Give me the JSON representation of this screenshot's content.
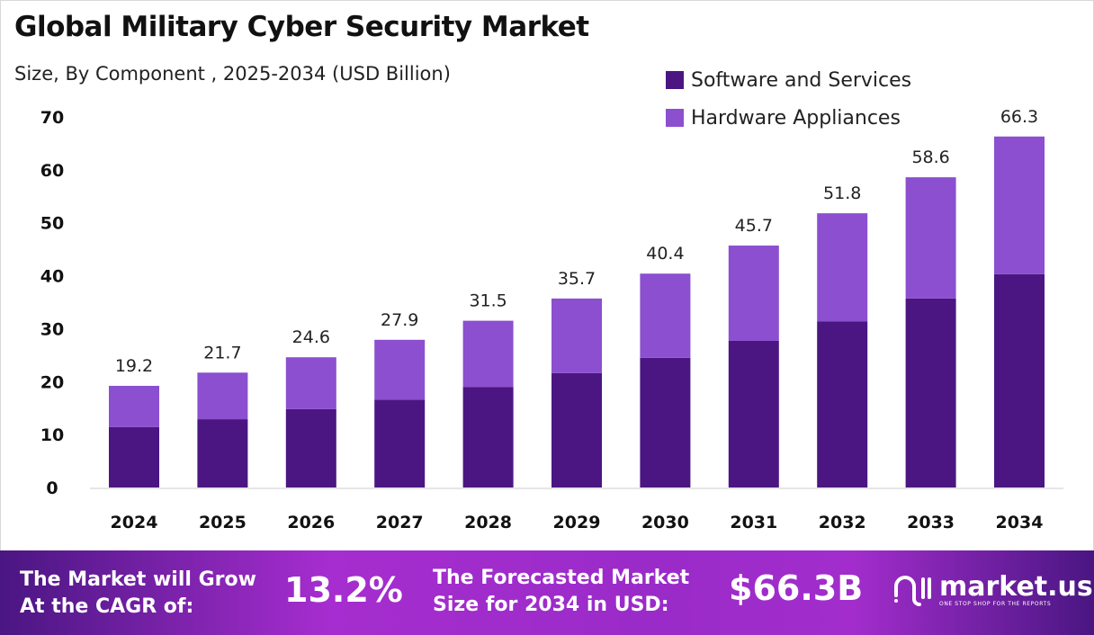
{
  "chart_data": {
    "type": "bar",
    "stacked": true,
    "title": "Global Military Cyber Security Market",
    "subtitle": "Size, By Component , 2025-2034 (USD Billion)",
    "categories": [
      "2024",
      "2025",
      "2026",
      "2027",
      "2028",
      "2029",
      "2030",
      "2031",
      "2032",
      "2033",
      "2034"
    ],
    "series": [
      {
        "name": "Software and Services",
        "color": "#4b1682",
        "values": [
          11.4,
          12.9,
          14.8,
          16.6,
          19.0,
          21.6,
          24.5,
          27.7,
          31.4,
          35.7,
          40.3
        ]
      },
      {
        "name": "Hardware Appliances",
        "color": "#8b4fcf",
        "values": [
          7.8,
          8.8,
          9.8,
          11.3,
          12.5,
          14.1,
          15.9,
          18.0,
          20.4,
          22.9,
          26.0
        ]
      }
    ],
    "totals": [
      "19.2",
      "21.7",
      "24.6",
      "27.9",
      "31.5",
      "35.7",
      "40.4",
      "45.7",
      "51.8",
      "58.6",
      "66.3"
    ],
    "yticks": [
      "0",
      "10",
      "20",
      "30",
      "40",
      "50",
      "60",
      "70"
    ],
    "ylim": [
      0,
      70
    ],
    "grid": false,
    "legend": "top-right"
  },
  "footer": {
    "cagr_label_1": "The Market will Grow",
    "cagr_label_2": "At the CAGR of:",
    "cagr_value": "13.2%",
    "forecast_label_1": "The Forecasted Market",
    "forecast_label_2": "Size for 2034 in USD:",
    "forecast_value": "$66.3B",
    "logo_text": "market.us",
    "logo_tagline": "ONE STOP SHOP FOR THE REPORTS"
  }
}
